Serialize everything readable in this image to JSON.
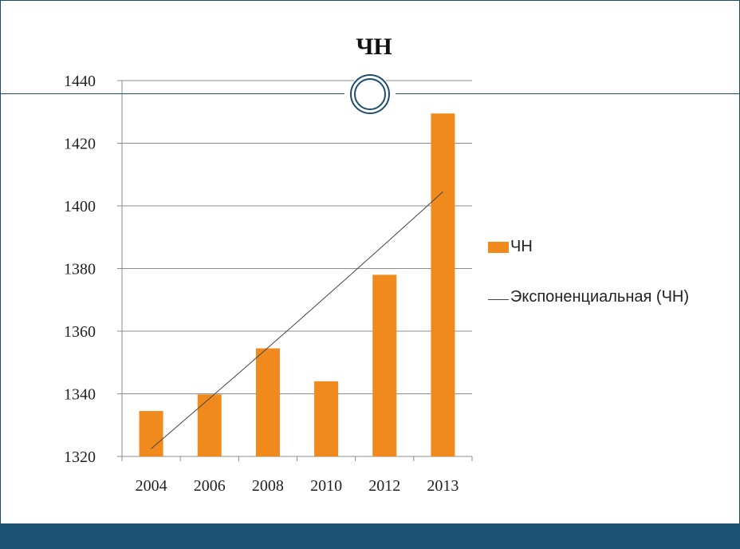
{
  "slide": {
    "colors": {
      "frame": "#1f4e6b",
      "bottom_band": "#1c5273",
      "bar": "#f08a1d",
      "trendline": "#444444",
      "gridline": "#8c8c8c"
    }
  },
  "chart_data": {
    "type": "bar",
    "title": "ЧН",
    "categories": [
      "2004",
      "2006",
      "2008",
      "2010",
      "2012",
      "2013"
    ],
    "series": [
      {
        "name": "ЧН",
        "values": [
          1334.5,
          1339.8,
          1354.5,
          1344.0,
          1378.0,
          1429.5
        ]
      }
    ],
    "trendline": {
      "name": "Экспоненциальная (ЧН)",
      "kind": "exponential",
      "start_value": 1322.5,
      "end_value": 1404.5
    },
    "yticks": [
      "1320",
      "1340",
      "1360",
      "1380",
      "1400",
      "1420",
      "1440"
    ],
    "ylim": [
      1320,
      1440
    ],
    "grid": true,
    "legend_position": "right",
    "xlabel": "",
    "ylabel": ""
  }
}
